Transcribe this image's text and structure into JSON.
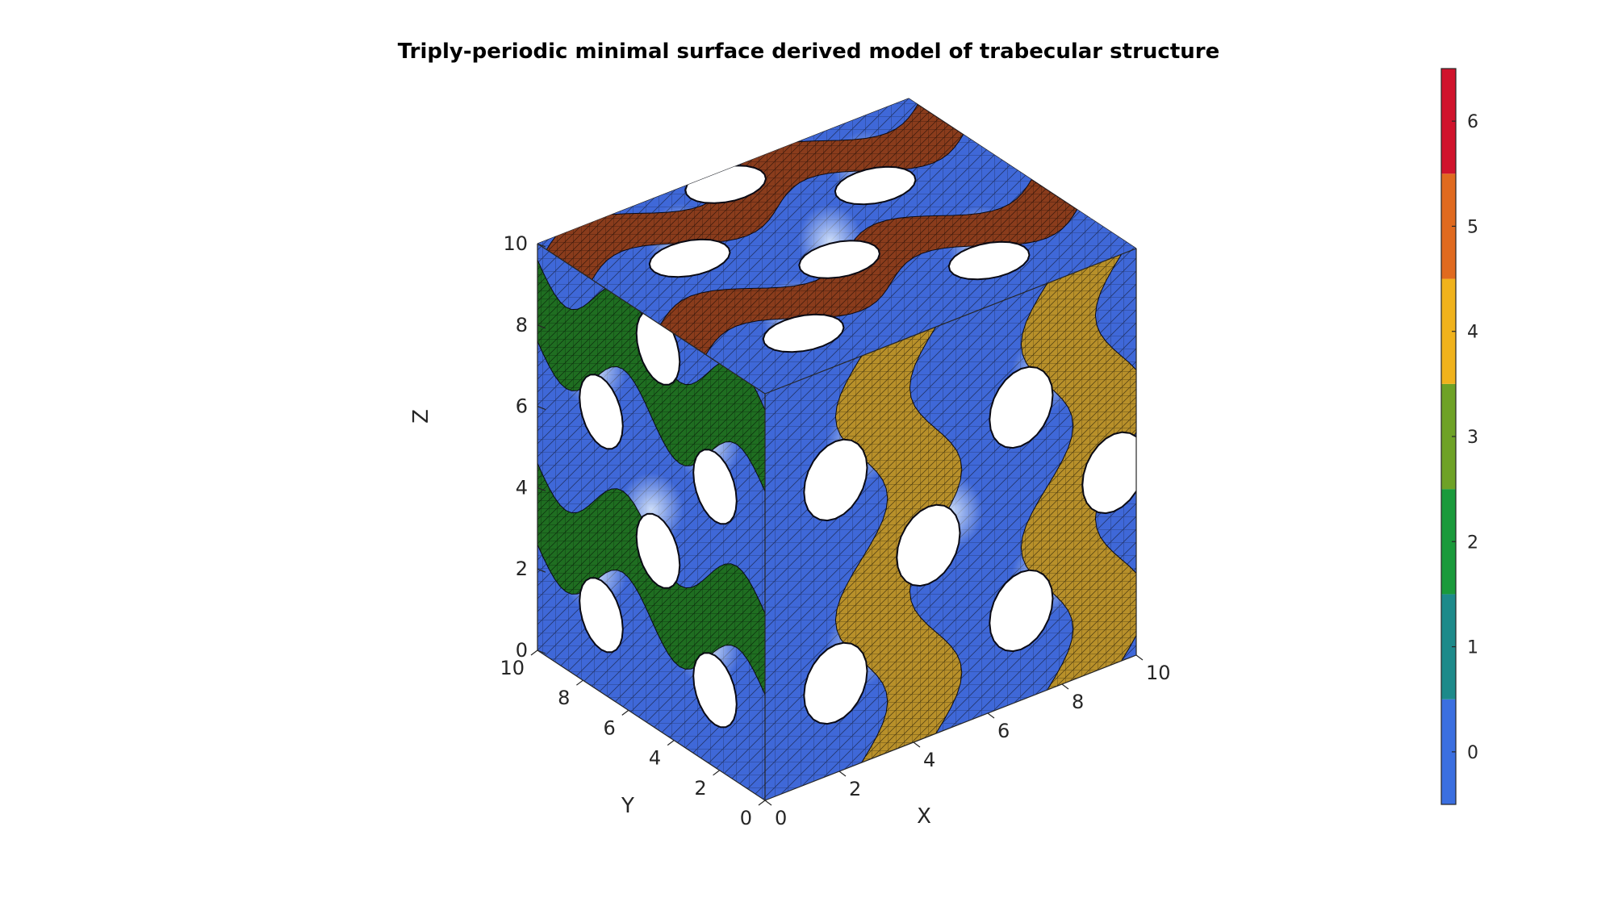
{
  "chart_data": {
    "type": "3d-surface-mesh",
    "title": "Triply-periodic minimal surface derived model of trabecular structure",
    "xlabel": "X",
    "ylabel": "Y",
    "zlabel": "Z",
    "xlim": [
      0,
      10
    ],
    "ylim": [
      0,
      10
    ],
    "zlim": [
      0,
      10
    ],
    "x_ticks": [
      "0",
      "2",
      "4",
      "6",
      "8",
      "10"
    ],
    "y_ticks": [
      "0",
      "2",
      "4",
      "6",
      "8",
      "10"
    ],
    "z_ticks": [
      "0",
      "2",
      "4",
      "6",
      "8",
      "10"
    ],
    "grid": true,
    "surface_color_value": 0,
    "cap_color_values": {
      "x_face": 4,
      "y_face": 2,
      "z_face": 5
    },
    "colorbar": {
      "placement": "right",
      "limits": [
        -0.5,
        6.5
      ],
      "ticks": [
        "0",
        "1",
        "2",
        "3",
        "4",
        "5",
        "6"
      ],
      "colors": [
        "#3b6fe0",
        "#1d8a8a",
        "#1a9a3b",
        "#6ea226",
        "#f0b21c",
        "#e06a1f",
        "#d0132c"
      ]
    }
  },
  "render_colors": {
    "surface": "#3f68d8",
    "surface_light": "#b8d4f4",
    "cap_x": "#b8902a",
    "cap_y": "#1f6e21",
    "cap_z": "#8a3c1c",
    "edge": "#0a0a14",
    "box": "#262626"
  }
}
